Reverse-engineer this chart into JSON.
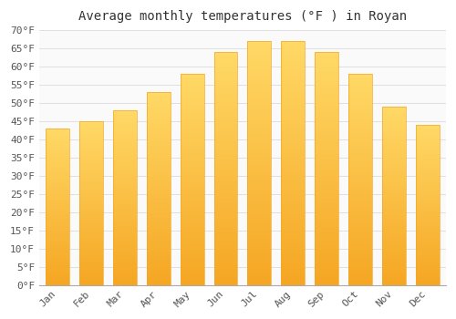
{
  "months": [
    "Jan",
    "Feb",
    "Mar",
    "Apr",
    "May",
    "Jun",
    "Jul",
    "Aug",
    "Sep",
    "Oct",
    "Nov",
    "Dec"
  ],
  "values": [
    43,
    45,
    48,
    53,
    58,
    64,
    67,
    67,
    64,
    58,
    49,
    44
  ],
  "bar_color_bottom": "#F5A623",
  "bar_color_top": "#FFD966",
  "title": "Average monthly temperatures (°F ) in Royan",
  "ylim": [
    0,
    70
  ],
  "ytick_step": 5,
  "background_color": "#FFFFFF",
  "plot_bg_color": "#FAFAFA",
  "grid_color": "#E0E0E0",
  "title_fontsize": 10,
  "tick_fontsize": 8,
  "font_family": "monospace",
  "tick_color": "#555555",
  "title_color": "#333333"
}
